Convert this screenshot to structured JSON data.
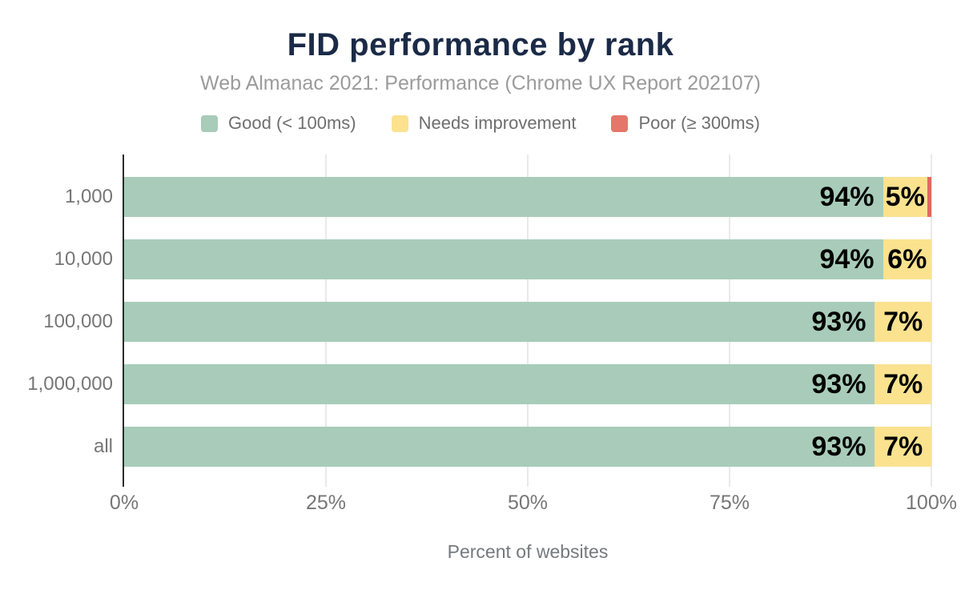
{
  "header": {
    "title": "FID performance by rank",
    "subtitle": "Web Almanac 2021: Performance (Chrome UX Report 202107)"
  },
  "legend": [
    {
      "label": "Good (< 100ms)",
      "color": "#a8ccb9"
    },
    {
      "label": "Needs improvement",
      "color": "#fae28f"
    },
    {
      "label": "Poor (≥ 300ms)",
      "color": "#e5766a"
    }
  ],
  "chart_data": {
    "type": "bar",
    "orientation": "horizontal",
    "stacked": true,
    "title": "FID performance by rank",
    "subtitle": "Web Almanac 2021: Performance (Chrome UX Report 202107)",
    "categories": [
      "1,000",
      "10,000",
      "100,000",
      "1,000,000",
      "all"
    ],
    "series": [
      {
        "name": "Good (< 100ms)",
        "color": "#a8ccb9",
        "values": [
          94,
          94,
          93,
          93,
          93
        ],
        "labels": [
          "94%",
          "94%",
          "93%",
          "93%",
          "93%"
        ]
      },
      {
        "name": "Needs improvement",
        "color": "#fae28f",
        "values": [
          5,
          6,
          7,
          7,
          7
        ],
        "labels": [
          "5%",
          "6%",
          "7%",
          "7%",
          "7%"
        ],
        "display_values": [
          5.5,
          6,
          7,
          7,
          7
        ]
      },
      {
        "name": "Poor (≥ 300ms)",
        "color": "#e2685c",
        "values": [
          1,
          0,
          0,
          0,
          0
        ],
        "labels": [
          "",
          "",
          "",
          "",
          ""
        ],
        "display_values": [
          0.5,
          0,
          0,
          0,
          0
        ]
      }
    ],
    "xlabel": "Percent of websites",
    "ylabel": "",
    "x_ticks": [
      "0%",
      "25%",
      "50%",
      "75%",
      "100%"
    ],
    "x_tick_values": [
      0,
      25,
      50,
      75,
      100
    ],
    "xlim": [
      0,
      100
    ],
    "grid": "vertical",
    "legend_position": "top"
  }
}
